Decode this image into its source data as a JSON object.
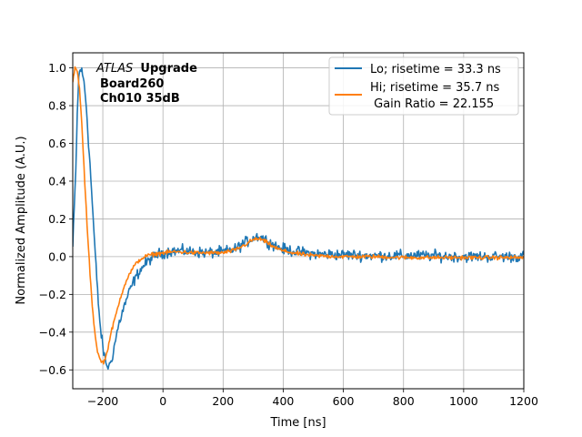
{
  "chart_data": {
    "type": "line",
    "title": "",
    "xlabel": "Time [ns]",
    "ylabel": "Normalized Amplitude (A.U.)",
    "xlim": [
      -300,
      1200
    ],
    "ylim": [
      -0.7,
      1.08
    ],
    "xticks": [
      -200,
      0,
      200,
      400,
      600,
      800,
      1000,
      1200
    ],
    "yticks": [
      -0.6,
      -0.4,
      -0.2,
      0.0,
      0.2,
      0.4,
      0.6,
      0.8,
      1.0
    ],
    "grid": true,
    "legend_position": "top-right",
    "annotation": {
      "experiment": "ATLAS",
      "tag": "Upgrade",
      "board": "Board260",
      "channel": "Ch010 35dB"
    },
    "legend": {
      "lo_label": "Lo; risetime = 33.3 ns",
      "hi_label": "Hi; risetime = 35.7 ns",
      "gain_label": " Gain Ratio = 22.155"
    },
    "series": [
      {
        "name": "Lo; risetime = 33.3 ns",
        "color": "#1f77b4",
        "noise": 0.022,
        "x": [
          -300,
          -290,
          -285,
          -280,
          -275,
          -270,
          -262,
          -255,
          -248,
          -240,
          -232,
          -224,
          -216,
          -208,
          -200,
          -192,
          -185,
          -178,
          -170,
          -160,
          -150,
          -140,
          -130,
          -120,
          -100,
          -80,
          -60,
          -40,
          -20,
          0,
          30,
          60,
          100,
          150,
          200,
          240,
          270,
          300,
          320,
          340,
          370,
          400,
          450,
          500,
          600,
          700,
          800,
          900,
          1000,
          1100,
          1200
        ],
        "values": [
          0.05,
          0.45,
          0.75,
          0.95,
          1.0,
          0.98,
          0.92,
          0.8,
          0.62,
          0.42,
          0.2,
          -0.02,
          -0.22,
          -0.38,
          -0.48,
          -0.55,
          -0.58,
          -0.58,
          -0.54,
          -0.46,
          -0.38,
          -0.32,
          -0.27,
          -0.22,
          -0.14,
          -0.08,
          -0.04,
          -0.01,
          0.01,
          0.02,
          0.03,
          0.03,
          0.025,
          0.02,
          0.025,
          0.04,
          0.07,
          0.1,
          0.11,
          0.09,
          0.06,
          0.04,
          0.025,
          0.015,
          0.01,
          0.005,
          0.005,
          0.005,
          0.0,
          0.0,
          0.0
        ]
      },
      {
        "name": "Hi; risetime = 35.7 ns",
        "color": "#ff7f0e",
        "noise": 0.008,
        "x": [
          -300,
          -292,
          -285,
          -278,
          -272,
          -265,
          -258,
          -250,
          -242,
          -235,
          -228,
          -222,
          -215,
          -208,
          -200,
          -194,
          -188,
          -180,
          -172,
          -162,
          -150,
          -140,
          -130,
          -120,
          -100,
          -80,
          -60,
          -40,
          -20,
          0,
          30,
          60,
          100,
          150,
          200,
          240,
          270,
          300,
          320,
          340,
          370,
          400,
          450,
          500,
          600,
          700,
          800,
          900,
          1000,
          1100,
          1200
        ],
        "values": [
          0.93,
          1.0,
          0.98,
          0.9,
          0.76,
          0.55,
          0.33,
          0.1,
          -0.1,
          -0.26,
          -0.38,
          -0.46,
          -0.52,
          -0.55,
          -0.56,
          -0.55,
          -0.52,
          -0.46,
          -0.4,
          -0.34,
          -0.27,
          -0.21,
          -0.16,
          -0.12,
          -0.06,
          -0.02,
          0.0,
          0.01,
          0.015,
          0.02,
          0.025,
          0.025,
          0.02,
          0.02,
          0.02,
          0.035,
          0.06,
          0.09,
          0.095,
          0.08,
          0.05,
          0.03,
          0.015,
          0.005,
          0.0,
          0.0,
          -0.005,
          -0.005,
          -0.005,
          -0.005,
          -0.005
        ]
      }
    ]
  }
}
